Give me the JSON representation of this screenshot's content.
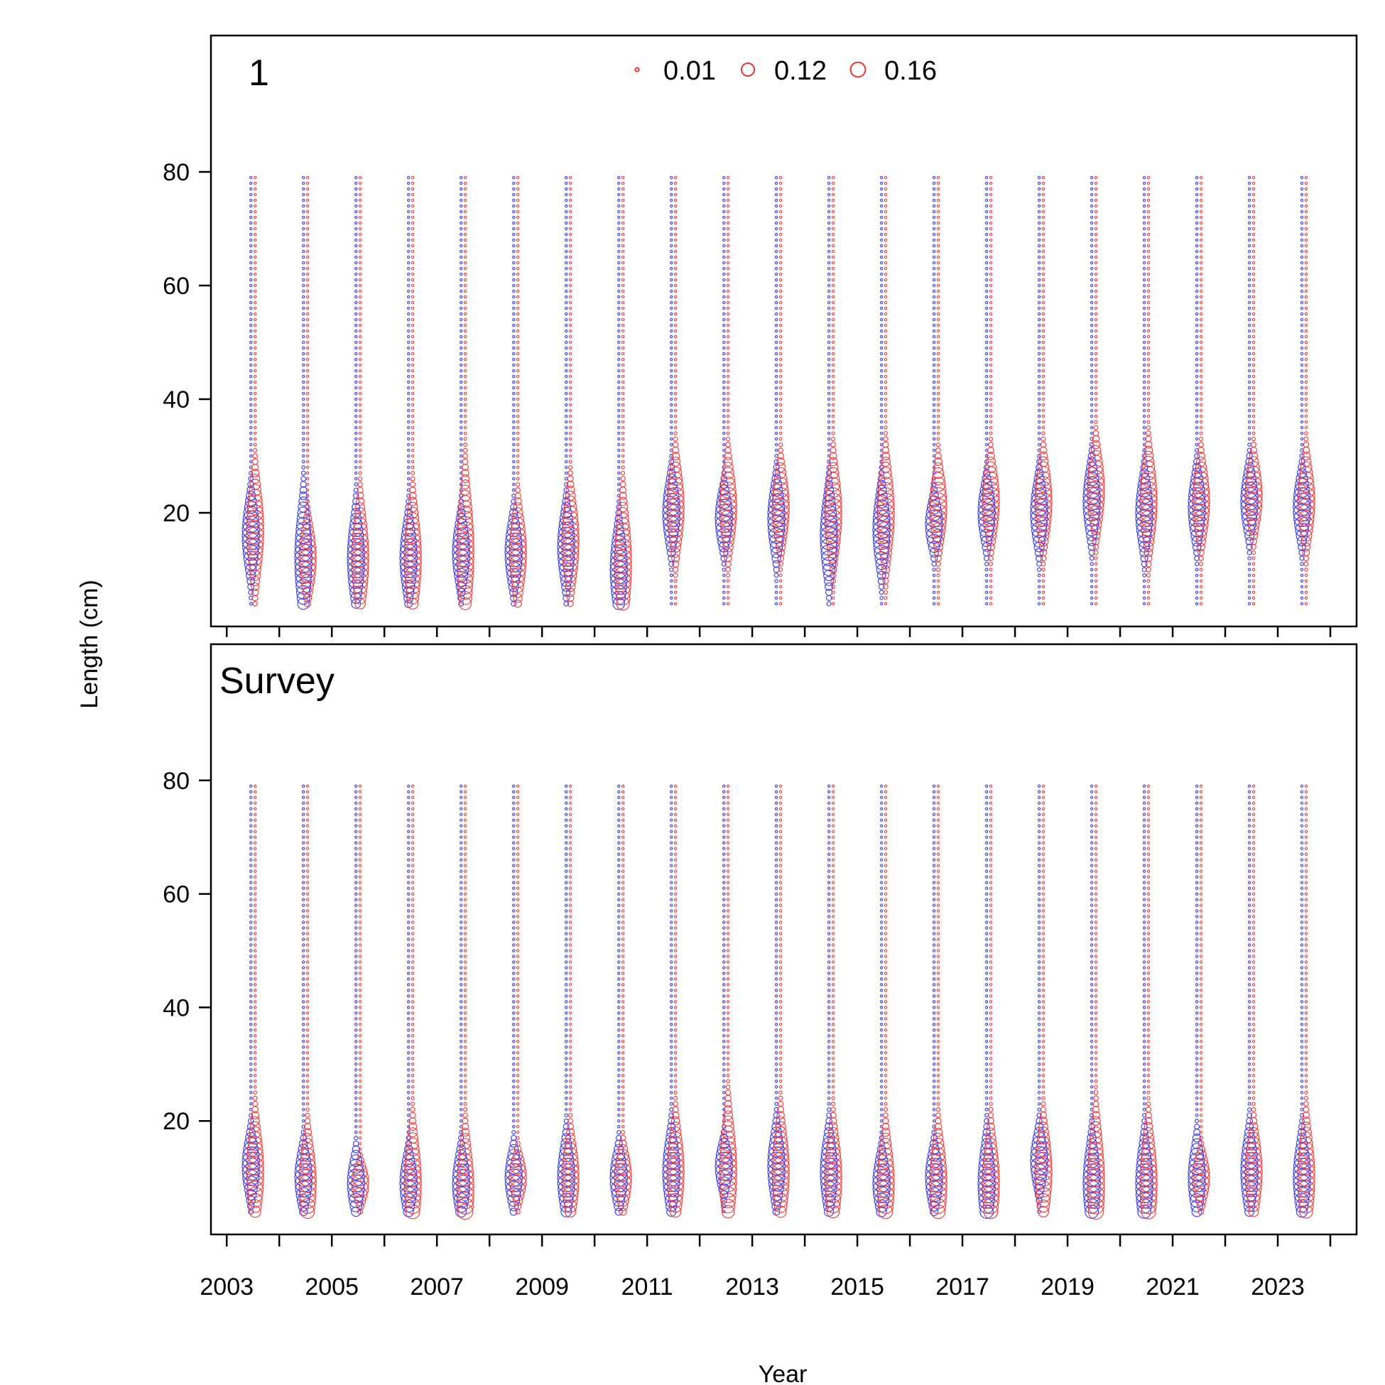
{
  "chart_data": {
    "type": "scatter",
    "subtype": "bubble",
    "xlabel": "Year",
    "ylabel": "Length (cm)",
    "x_ticks": [
      2003,
      2005,
      2007,
      2009,
      2011,
      2013,
      2015,
      2017,
      2019,
      2021,
      2023
    ],
    "xlim": [
      2002.7,
      2024.5
    ],
    "y_ticks": [
      20,
      40,
      60,
      80
    ],
    "ylim": [
      0,
      104
    ],
    "years": [
      2003,
      2004,
      2005,
      2006,
      2007,
      2008,
      2009,
      2010,
      2011,
      2012,
      2013,
      2014,
      2015,
      2016,
      2017,
      2018,
      2019,
      2020,
      2021,
      2022,
      2023
    ],
    "length_bins": {
      "min": 4,
      "max": 79,
      "step": 1
    },
    "series_colors": {
      "female": "#3333ee",
      "male": "#ee3333"
    },
    "legend": {
      "placement": "top-center",
      "entries": [
        {
          "label": "0.01",
          "value": 0.01
        },
        {
          "label": "0.12",
          "value": 0.12
        },
        {
          "label": "0.16",
          "value": 0.16
        }
      ]
    },
    "panels": [
      {
        "label": "1",
        "female_mode": [
          16,
          12,
          12,
          12,
          13,
          13,
          14,
          10,
          20,
          19,
          19,
          16,
          17,
          18,
          20,
          20,
          22,
          20,
          21,
          22,
          21
        ],
        "male_mode": [
          17,
          12,
          12,
          12,
          13,
          13,
          15,
          11,
          21,
          21,
          21,
          20,
          20,
          21,
          22,
          22,
          24,
          22,
          22,
          23,
          22
        ],
        "male_max_length": [
          45,
          32,
          40,
          41,
          50,
          37,
          41,
          43,
          46,
          45,
          43,
          46,
          48,
          43,
          44,
          45,
          47,
          48,
          44,
          43,
          45
        ],
        "female_max_length": [
          30,
          35,
          29,
          26,
          25,
          25,
          28,
          26,
          32,
          28,
          32,
          33,
          32,
          25,
          30,
          32,
          35,
          33,
          33,
          33,
          32
        ]
      },
      {
        "label": "Survey",
        "female_mode": [
          12,
          10,
          9,
          9,
          9,
          10,
          10,
          10,
          11,
          12,
          12,
          11,
          9,
          10,
          9,
          13,
          9,
          9,
          10,
          11,
          10
        ],
        "male_mode": [
          11,
          9,
          9,
          9,
          8,
          10,
          10,
          10,
          11,
          11,
          11,
          10,
          9,
          9,
          9,
          11,
          9,
          9,
          10,
          11,
          10
        ],
        "male_max_length": [
          38,
          34,
          20,
          37,
          36,
          23,
          32,
          26,
          37,
          42,
          38,
          36,
          35,
          35,
          36,
          36,
          42,
          38,
          24,
          34,
          38
        ],
        "female_max_length": [
          22,
          19,
          17,
          18,
          19,
          18,
          23,
          18,
          25,
          18,
          25,
          25,
          18,
          19,
          25,
          22,
          25,
          25,
          22,
          25,
          24
        ]
      }
    ]
  }
}
